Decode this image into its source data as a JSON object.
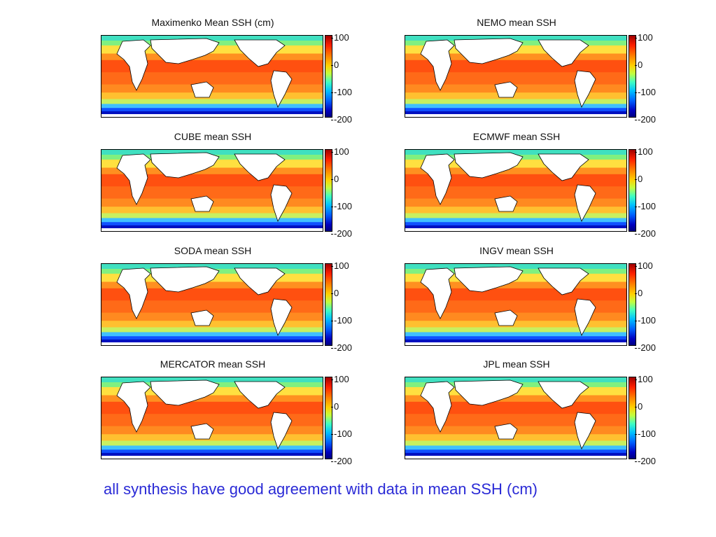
{
  "panels": [
    {
      "title": "Maximenko Mean SSH (cm)"
    },
    {
      "title": "NEMO mean SSH"
    },
    {
      "title": "CUBE mean SSH"
    },
    {
      "title": "ECMWF mean SSH"
    },
    {
      "title": "SODA mean SSH"
    },
    {
      "title": "INGV mean SSH"
    },
    {
      "title": "MERCATOR mean SSH"
    },
    {
      "title": "JPL mean SSH"
    }
  ],
  "colorbar": {
    "ticks": [
      "100",
      "0",
      "-100",
      "-200"
    ],
    "range": [
      -200,
      100
    ],
    "colors": [
      "#a00000",
      "#ff2000",
      "#ff8000",
      "#ffd000",
      "#c0ff40",
      "#40ffc0",
      "#00c0ff",
      "#0060ff",
      "#0000c0",
      "#000080"
    ]
  },
  "caption": "all synthesis have good agreement with data in mean SSH (cm)"
}
